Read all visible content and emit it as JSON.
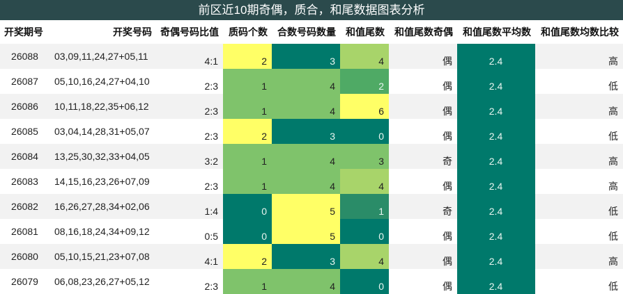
{
  "title": "前区近10期奇偶，质合，和尾数据图表分析",
  "headers": [
    "开奖期号",
    "开奖号码",
    "奇偶号码比值",
    "质码个数",
    "合数号码数量",
    "和值尾数",
    "和值尾数奇偶",
    "和值尾数平均数",
    "和值尾数均数比较"
  ],
  "rows": [
    {
      "issue": "26088",
      "numbers": "03,09,11,24,27+05,11",
      "ratio": "4:1",
      "prime": "2",
      "composite": "3",
      "tail": "4",
      "parity": "偶",
      "avg": "2.4",
      "cmp": "高"
    },
    {
      "issue": "26087",
      "numbers": "05,10,16,24,27+04,10",
      "ratio": "2:3",
      "prime": "1",
      "composite": "4",
      "tail": "2",
      "parity": "偶",
      "avg": "2.4",
      "cmp": "低"
    },
    {
      "issue": "26086",
      "numbers": "10,11,18,22,35+06,12",
      "ratio": "2:3",
      "prime": "1",
      "composite": "4",
      "tail": "6",
      "parity": "偶",
      "avg": "2.4",
      "cmp": "高"
    },
    {
      "issue": "26085",
      "numbers": "03,04,14,28,31+05,07",
      "ratio": "2:3",
      "prime": "2",
      "composite": "3",
      "tail": "0",
      "parity": "偶",
      "avg": "2.4",
      "cmp": "低"
    },
    {
      "issue": "26084",
      "numbers": "13,25,30,32,33+04,05",
      "ratio": "3:2",
      "prime": "1",
      "composite": "4",
      "tail": "3",
      "parity": "奇",
      "avg": "2.4",
      "cmp": "高"
    },
    {
      "issue": "26083",
      "numbers": "14,15,16,23,26+07,09",
      "ratio": "2:3",
      "prime": "1",
      "composite": "4",
      "tail": "4",
      "parity": "偶",
      "avg": "2.4",
      "cmp": "高"
    },
    {
      "issue": "26082",
      "numbers": "16,26,27,28,34+02,06",
      "ratio": "1:4",
      "prime": "0",
      "composite": "5",
      "tail": "1",
      "parity": "奇",
      "avg": "2.4",
      "cmp": "低"
    },
    {
      "issue": "26081",
      "numbers": "08,16,18,24,34+09,12",
      "ratio": "0:5",
      "prime": "0",
      "composite": "5",
      "tail": "0",
      "parity": "偶",
      "avg": "2.4",
      "cmp": "低"
    },
    {
      "issue": "26080",
      "numbers": "05,10,15,21,23+07,08",
      "ratio": "4:1",
      "prime": "2",
      "composite": "3",
      "tail": "4",
      "parity": "偶",
      "avg": "2.4",
      "cmp": "高"
    },
    {
      "issue": "26079",
      "numbers": "06,08,23,26,27+05,12",
      "ratio": "2:3",
      "prime": "1",
      "composite": "4",
      "tail": "0",
      "parity": "偶",
      "avg": "2.4",
      "cmp": "低"
    }
  ],
  "heat_colors": {
    "prime": {
      "0": "#00796b",
      "1": "#7fc36b",
      "2": "#ffff66"
    },
    "composite": {
      "3": "#00796b",
      "4": "#7fc36b",
      "5": "#ffff66"
    },
    "tail": {
      "0": "#00796b",
      "1": "#2a8c68",
      "2": "#4faa65",
      "3": "#7fc36b",
      "4": "#a8d46a",
      "6": "#ffff66"
    }
  },
  "dark_text_color": "#e8f5f0",
  "light_text_color": "#222222"
}
